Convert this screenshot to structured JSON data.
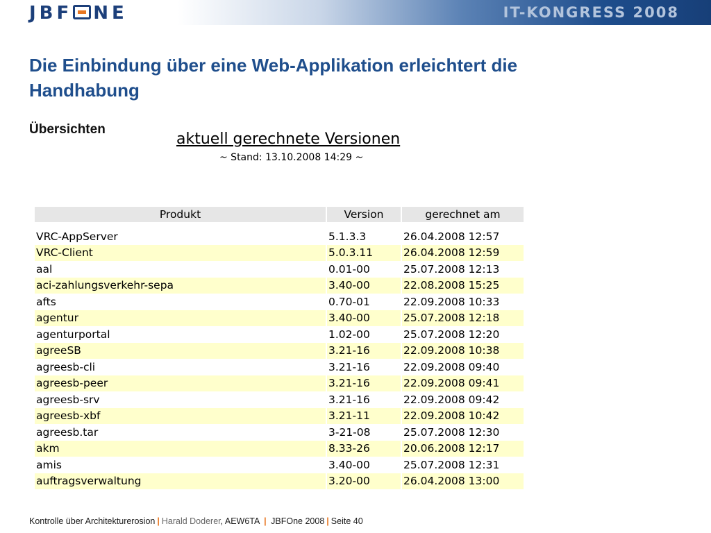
{
  "header": {
    "logo": "JBFONE",
    "congress": "IT-KONGRESS 2008"
  },
  "title": "Die Einbindung über eine Web-Applikation erleichtert die Handhabung",
  "subtitle": "Übersichten",
  "screenshot": {
    "heading": "aktuell gerechnete Versionen",
    "stand": "~ Stand: 13.10.2008 14:29 ~",
    "columns": [
      "Produkt",
      "Version",
      "gerechnet am"
    ],
    "rows": [
      [
        "VRC-AppServer",
        "5.1.3.3",
        "26.04.2008 12:57"
      ],
      [
        "VRC-Client",
        "5.0.3.11",
        "26.04.2008 12:59"
      ],
      [
        "aal",
        "0.01-00",
        "25.07.2008 12:13"
      ],
      [
        "aci-zahlungsverkehr-sepa",
        "3.40-00",
        "22.08.2008 15:25"
      ],
      [
        "afts",
        "0.70-01",
        "22.09.2008 10:33"
      ],
      [
        "agentur",
        "3.40-00",
        "25.07.2008 12:18"
      ],
      [
        "agenturportal",
        "1.02-00",
        "25.07.2008 12:20"
      ],
      [
        "agreeSB",
        "3.21-16",
        "22.09.2008 10:38"
      ],
      [
        "agreesb-cli",
        "3.21-16",
        "22.09.2008 09:40"
      ],
      [
        "agreesb-peer",
        "3.21-16",
        "22.09.2008 09:41"
      ],
      [
        "agreesb-srv",
        "3.21-16",
        "22.09.2008 09:42"
      ],
      [
        "agreesb-xbf",
        "3.21-11",
        "22.09.2008 10:42"
      ],
      [
        "agreesb.tar",
        "3-21-08",
        "25.07.2008 12:30"
      ],
      [
        "akm",
        "8.33-26",
        "20.06.2008 12:17"
      ],
      [
        "amis",
        "3.40-00",
        "25.07.2008 12:31"
      ],
      [
        "auftragsverwaltung",
        "3.20-00",
        "26.04.2008 13:00"
      ]
    ]
  },
  "footer": {
    "topic": "Kontrolle über Architekturerosion",
    "sep": "|",
    "author": "Harald Doderer",
    "dept": ", AEW6TA",
    "event": "JBFOne 2008",
    "page": "Seite 40"
  },
  "colors": {
    "title": "#1f4e8c",
    "header_dark": "#173f78",
    "accent": "#e87722",
    "row_alt": "#ffffcc",
    "table_header": "#e6e6e6"
  },
  "icons": {
    "logo_o": "logo-o-mark"
  }
}
